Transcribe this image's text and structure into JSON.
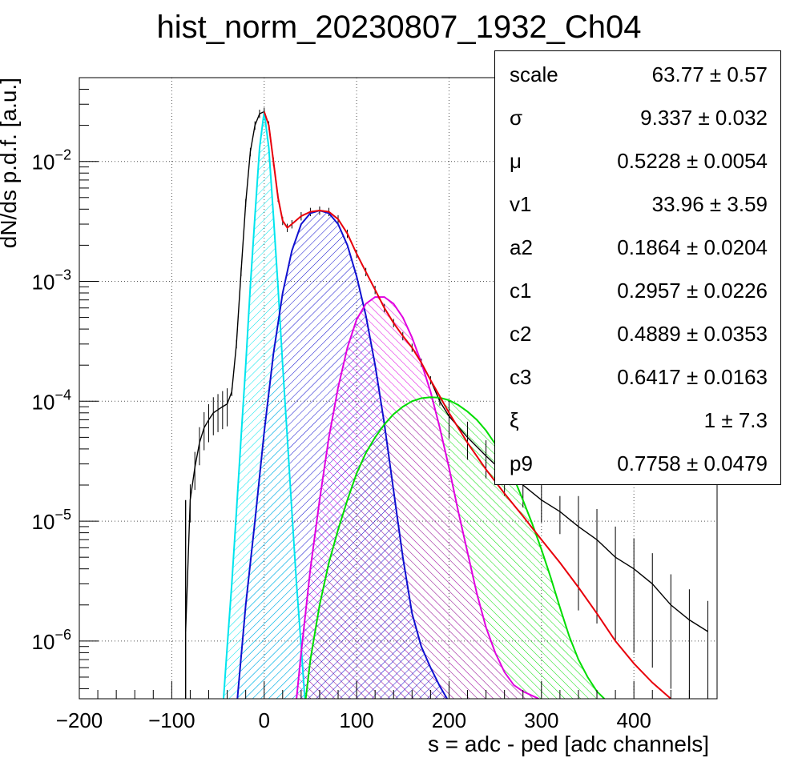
{
  "title": "hist_norm_20230807_1932_Ch04",
  "stats": [
    {
      "name": "scale",
      "value": "63.77 ± 0.57"
    },
    {
      "name": "σ",
      "value": "9.337 ± 0.032"
    },
    {
      "name": "μ",
      "value": "0.5228 ± 0.0054"
    },
    {
      "name": "v1",
      "value": "33.96 ± 3.59"
    },
    {
      "name": "a2",
      "value": "0.1864 ± 0.0204"
    },
    {
      "name": "c1",
      "value": "0.2957 ± 0.0226"
    },
    {
      "name": "c2",
      "value": "0.4889 ± 0.0353"
    },
    {
      "name": "c3",
      "value": "0.6417 ± 0.0163"
    },
    {
      "name": "ξ",
      "value": "1 ± 7.3"
    },
    {
      "name": "p9",
      "value": "0.7758 ± 0.0479"
    }
  ],
  "colors": {
    "histogram": "#000000",
    "total_fit": "#e8000b",
    "pedestal": "#00e5ee",
    "pe1": "#1010d0",
    "pe2": "#e000e0",
    "pe3": "#00dd00",
    "grid": "#555555"
  },
  "chart_data": {
    "type": "line",
    "title": "hist_norm_20230807_1932_Ch04",
    "xlabel": "s = adc - ped [adc channels]",
    "ylabel": "dN/ds p.d.f. [a.u.]",
    "xlim": [
      -200,
      490
    ],
    "ylim": [
      3.3e-07,
      0.05
    ],
    "yscale": "log",
    "grid": true,
    "legend": "none",
    "x_ticks": [
      "−200",
      "−100",
      "0",
      "100",
      "200",
      "300",
      "400"
    ],
    "x_tick_values": [
      -200,
      -100,
      0,
      100,
      200,
      300,
      400
    ],
    "y_ticks": [
      {
        "value": 0.01,
        "base": "10",
        "exp": "−2"
      },
      {
        "value": 0.001,
        "base": "10",
        "exp": "−3"
      },
      {
        "value": 0.0001,
        "base": "10",
        "exp": "−4"
      },
      {
        "value": 1e-05,
        "base": "10",
        "exp": "−5"
      },
      {
        "value": 1e-06,
        "base": "10",
        "exp": "−6"
      }
    ],
    "series": [
      {
        "key": "histogram",
        "x": [
          -85,
          -80,
          -75,
          -70,
          -65,
          -60,
          -55,
          -50,
          -45,
          -40,
          -35,
          -30,
          -25,
          -20,
          -15,
          -10,
          -5,
          0,
          5,
          10,
          15,
          20,
          25,
          30,
          40,
          50,
          60,
          70,
          80,
          90,
          100,
          110,
          120,
          130,
          140,
          150,
          160,
          170,
          180,
          190,
          200,
          220,
          240,
          260,
          280,
          300,
          320,
          340,
          360,
          380,
          400,
          420,
          440,
          460,
          480
        ],
        "y": [
          1.2e-06,
          1.5e-05,
          2.8e-05,
          4.5e-05,
          6e-05,
          7e-05,
          8e-05,
          8.5e-05,
          9e-05,
          9.5e-05,
          0.00012,
          0.0003,
          0.0012,
          0.0045,
          0.012,
          0.02,
          0.025,
          0.026,
          0.02,
          0.01,
          0.005,
          0.0032,
          0.0028,
          0.003,
          0.0035,
          0.0038,
          0.0039,
          0.0038,
          0.0033,
          0.0025,
          0.0017,
          0.0012,
          0.00085,
          0.0006,
          0.00045,
          0.00035,
          0.00028,
          0.00021,
          0.00015,
          0.0001,
          7.5e-05,
          5e-05,
          3.5e-05,
          2.5e-05,
          2e-05,
          1.5e-05,
          1.2e-05,
          9e-06,
          7e-06,
          5e-06,
          4e-06,
          3e-06,
          2e-06,
          1.5e-06,
          1.2e-06
        ]
      },
      {
        "key": "total_fit",
        "x": [
          0,
          5,
          10,
          15,
          20,
          25,
          30,
          40,
          50,
          60,
          70,
          80,
          90,
          100,
          110,
          120,
          130,
          140,
          150,
          160,
          170,
          180,
          190,
          200,
          220,
          240,
          260,
          280,
          300,
          320,
          340,
          360,
          380,
          400,
          420,
          440
        ],
        "y": [
          0.026,
          0.02,
          0.01,
          0.005,
          0.0032,
          0.0028,
          0.003,
          0.0035,
          0.0038,
          0.0039,
          0.0038,
          0.0033,
          0.0025,
          0.0017,
          0.0012,
          0.00085,
          0.0006,
          0.00045,
          0.00035,
          0.00028,
          0.00021,
          0.00015,
          0.00011,
          8e-05,
          4.5e-05,
          2.7e-05,
          1.7e-05,
          1.1e-05,
          7e-06,
          4.5e-06,
          2.8e-06,
          1.7e-06,
          1e-06,
          6.5e-07,
          4.5e-07,
          3.3e-07
        ]
      },
      {
        "key": "pedestal",
        "x": [
          -44,
          -40,
          -35,
          -30,
          -25,
          -20,
          -15,
          -10,
          -5,
          0,
          5,
          10,
          15,
          20,
          25,
          30,
          35,
          40,
          44
        ],
        "y": [
          3.3e-07,
          9e-07,
          3e-06,
          1.2e-05,
          5e-05,
          0.0002,
          0.0009,
          0.0035,
          0.013,
          0.026,
          0.013,
          0.0035,
          0.0009,
          0.0002,
          5e-05,
          1.2e-05,
          3e-06,
          9e-07,
          3.3e-07
        ]
      },
      {
        "key": "pe1",
        "x": [
          -29,
          -20,
          -10,
          0,
          10,
          20,
          30,
          40,
          50,
          60,
          70,
          80,
          90,
          100,
          110,
          120,
          130,
          140,
          150,
          160,
          170,
          180,
          190,
          198
        ],
        "y": [
          3.3e-07,
          2e-06,
          1e-05,
          5.5e-05,
          0.00025,
          0.0008,
          0.0018,
          0.003,
          0.0037,
          0.0039,
          0.0037,
          0.003,
          0.002,
          0.0011,
          0.00052,
          0.0002,
          6.5e-05,
          1.8e-05,
          5e-06,
          1.7e-06,
          9e-07,
          6e-07,
          4.2e-07,
          3.3e-07
        ]
      },
      {
        "key": "pe2",
        "x": [
          35,
          40,
          50,
          60,
          70,
          80,
          90,
          100,
          110,
          120,
          130,
          140,
          150,
          160,
          170,
          180,
          190,
          200,
          210,
          220,
          230,
          240,
          250,
          260,
          270,
          280,
          290,
          297
        ],
        "y": [
          3.3e-07,
          8e-07,
          4e-06,
          1.5e-05,
          5e-05,
          0.00013,
          0.00028,
          0.00048,
          0.00065,
          0.00074,
          0.00074,
          0.00065,
          0.0005,
          0.00034,
          0.00021,
          0.00012,
          6e-05,
          2.8e-05,
          1.2e-05,
          5.5e-06,
          2.5e-06,
          1.3e-06,
          8e-07,
          5.5e-07,
          4.3e-07,
          3.8e-07,
          3.5e-07,
          3.3e-07
        ]
      },
      {
        "key": "pe3",
        "x": [
          45,
          50,
          60,
          70,
          80,
          90,
          100,
          110,
          120,
          130,
          140,
          150,
          160,
          170,
          180,
          190,
          200,
          210,
          220,
          230,
          240,
          250,
          260,
          270,
          280,
          290,
          300,
          310,
          320,
          330,
          340,
          350,
          360,
          368
        ],
        "y": [
          3.3e-07,
          7e-07,
          2e-06,
          4.5e-06,
          8.5e-06,
          1.5e-05,
          2.5e-05,
          3.7e-05,
          5e-05,
          6.4e-05,
          7.8e-05,
          9e-05,
          0.0001,
          0.000106,
          0.000108,
          0.000107,
          0.000102,
          9.3e-05,
          8.2e-05,
          7e-05,
          5.7e-05,
          4.4e-05,
          3.3e-05,
          2.3e-05,
          1.5e-05,
          9.5e-06,
          5.8e-06,
          3.4e-06,
          1.9e-06,
          1.1e-06,
          7e-07,
          5e-07,
          3.8e-07,
          3.3e-07
        ]
      }
    ]
  }
}
